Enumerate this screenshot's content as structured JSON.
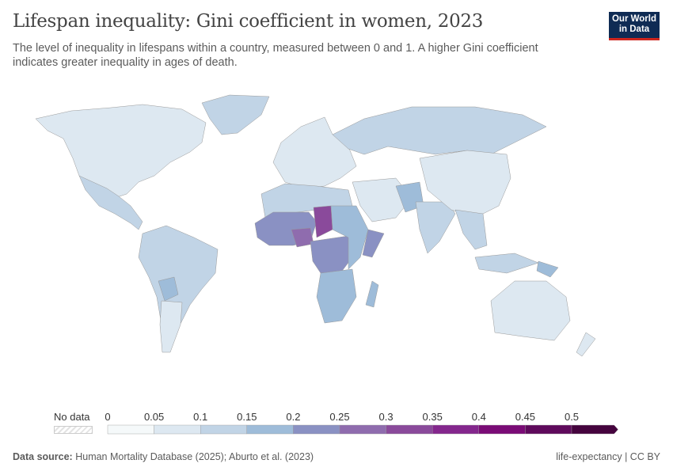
{
  "header": {
    "title": "Lifespan inequality: Gini coefficient in women, 2023",
    "subtitle": "The level of inequality in lifespans within a country, measured between 0 and 1. A higher Gini coefficient indicates greater inequality in ages of death.",
    "logo_text": "Our World in Data"
  },
  "legend": {
    "no_data_label": "No data",
    "ticks": [
      "0",
      "0.05",
      "0.1",
      "0.15",
      "0.2",
      "0.25",
      "0.3",
      "0.35",
      "0.4",
      "0.45",
      "0.5"
    ],
    "colors": [
      "#f5f9fa",
      "#dde8f1",
      "#c1d4e6",
      "#9ebcd9",
      "#8a91c3",
      "#8f6cae",
      "#8a4a9b",
      "#84278d",
      "#7a0b76",
      "#5f0a5c",
      "#45043e"
    ]
  },
  "map_regions": [
    {
      "name": "north-america",
      "bin": 1
    },
    {
      "name": "greenland",
      "bin": 2
    },
    {
      "name": "mexico-central-america",
      "bin": 2
    },
    {
      "name": "south-america",
      "bin": 2
    },
    {
      "name": "bolivia",
      "bin": 3
    },
    {
      "name": "argentina-chile",
      "bin": 1
    },
    {
      "name": "europe",
      "bin": 1
    },
    {
      "name": "russia",
      "bin": 2
    },
    {
      "name": "north-africa",
      "bin": 2
    },
    {
      "name": "west-africa",
      "bin": 4
    },
    {
      "name": "nigeria",
      "bin": 5
    },
    {
      "name": "chad",
      "bin": 6
    },
    {
      "name": "central-africa",
      "bin": 4
    },
    {
      "name": "east-africa",
      "bin": 3
    },
    {
      "name": "somalia",
      "bin": 4
    },
    {
      "name": "southern-africa",
      "bin": 3
    },
    {
      "name": "madagascar",
      "bin": 3
    },
    {
      "name": "middle-east",
      "bin": 1
    },
    {
      "name": "afghanistan-pakistan",
      "bin": 3
    },
    {
      "name": "india",
      "bin": 2
    },
    {
      "name": "china",
      "bin": 1
    },
    {
      "name": "southeast-asia",
      "bin": 2
    },
    {
      "name": "indonesia",
      "bin": 2
    },
    {
      "name": "papua-new-guinea",
      "bin": 3
    },
    {
      "name": "australia",
      "bin": 1
    },
    {
      "name": "new-zealand",
      "bin": 1
    }
  ],
  "footer": {
    "source_label": "Data source:",
    "source_text": "Human Mortality Database (2025); Aburto et al. (2023)",
    "right_text": "life-expectancy | CC BY"
  }
}
